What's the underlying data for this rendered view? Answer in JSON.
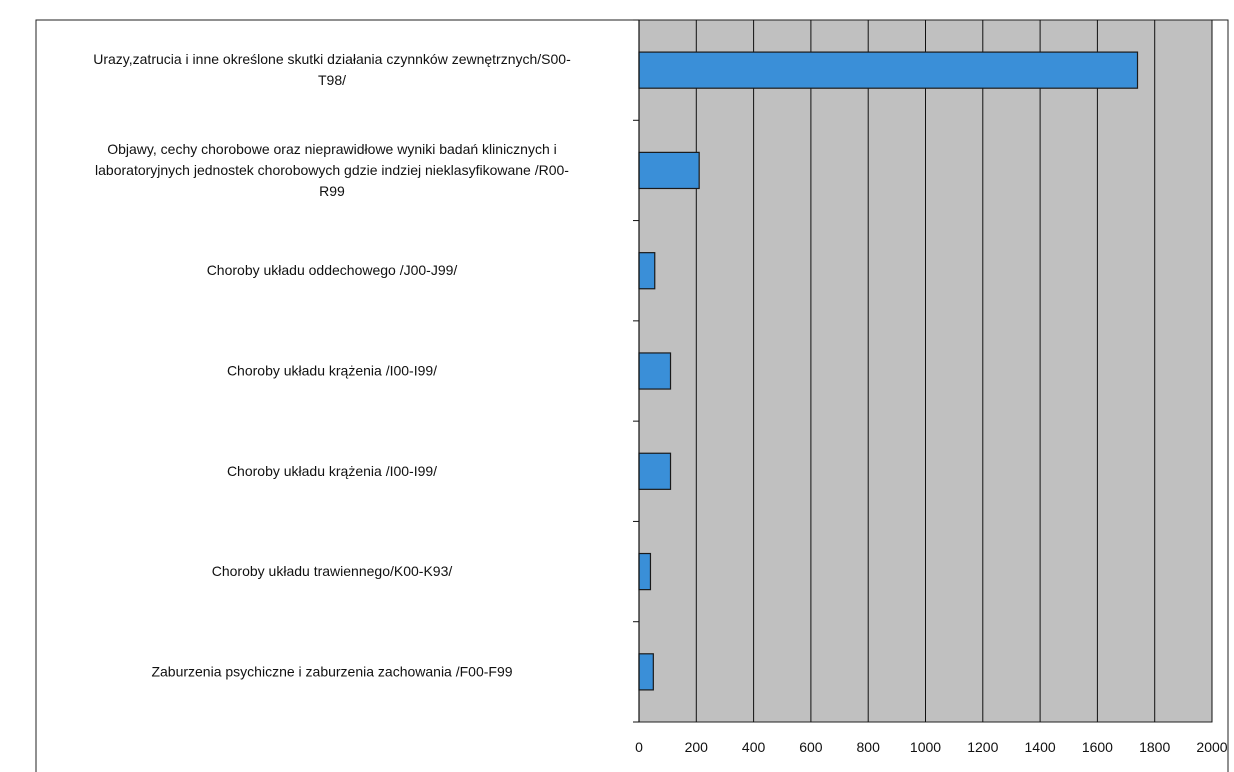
{
  "chart_data": {
    "type": "bar",
    "orientation": "horizontal",
    "categories": [
      "Urazy,zatrucia i inne określone skutki działania czynnków zewnętrznych/S00-T98/",
      "Objawy, cechy chorobowe oraz nieprawidłowe wyniki badań klinicznych i laboratoryjnych jednostek chorobowych gdzie indziej nieklasyfikowane /R00-R99",
      "Choroby układu oddechowego /J00-J99/",
      "Choroby układu krążenia /I00-I99/",
      "Choroby układu krążenia /I00-I99/",
      "Choroby układu trawiennego/K00-K93/",
      "Zaburzenia psychiczne i zaburzenia zachowania /F00-F99"
    ],
    "category_lines": [
      [
        "Urazy,zatrucia i inne określone skutki działania czynnków zewnętrznych/S00-",
        "T98/"
      ],
      [
        "Objawy, cechy chorobowe oraz nieprawidłowe wyniki badań klinicznych i",
        "laboratoryjnych jednostek chorobowych gdzie indziej nieklasyfikowane /R00-",
        "R99"
      ],
      [
        "Choroby układu oddechowego /J00-J99/"
      ],
      [
        "Choroby układu krążenia /I00-I99/"
      ],
      [
        "Choroby układu krążenia /I00-I99/"
      ],
      [
        "Choroby układu trawiennego/K00-K93/"
      ],
      [
        "Zaburzenia psychiczne i zaburzenia zachowania /F00-F99"
      ]
    ],
    "values": [
      1740,
      210,
      55,
      110,
      110,
      40,
      50
    ],
    "xlim": [
      0,
      2000
    ],
    "xticks": [
      0,
      200,
      400,
      600,
      800,
      1000,
      1200,
      1400,
      1600,
      1800,
      2000
    ],
    "grid": true,
    "title": "",
    "xlabel": "",
    "ylabel": "",
    "colors": {
      "bar": "#3a8fd8",
      "bar_edge": "#1a1a1a",
      "plot_background": "#c0c0c0",
      "gridline": "#111111"
    }
  }
}
